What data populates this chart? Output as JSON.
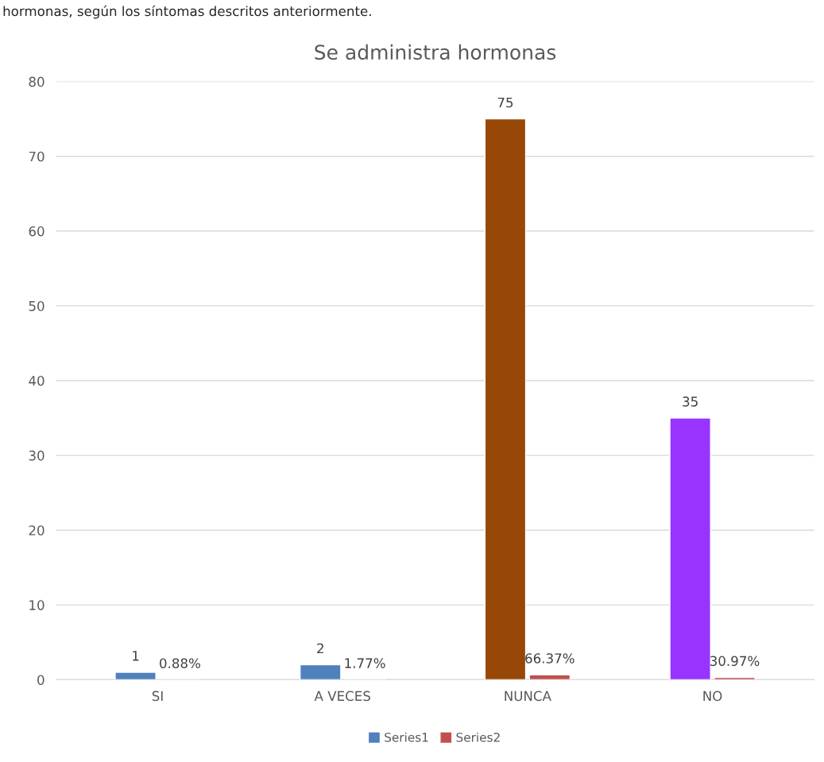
{
  "chart_data": {
    "type": "bar",
    "title": "Se administra hormonas",
    "annotations": [
      "hormonas, según los síntomas descritos anteriormente."
    ],
    "categories": [
      "SI",
      "A VECES",
      "NUNCA",
      "NO"
    ],
    "series": [
      {
        "name": "Series1",
        "color": "#4f81bd",
        "colors": [
          "#4f81bd",
          "#4f81bd",
          "#974706",
          "#9933ff"
        ],
        "values": [
          1,
          2,
          75,
          35
        ],
        "value_labels": [
          "1",
          "2",
          "75",
          "35"
        ]
      },
      {
        "name": "Series2",
        "color": "#c0504d",
        "values": [
          0.0088,
          0.0177,
          0.6637,
          0.3097
        ],
        "value_labels": [
          "0.88%",
          "1.77%",
          "66.37%",
          "30.97%"
        ]
      }
    ],
    "ylim": [
      0,
      80
    ],
    "yticks": [
      0,
      10,
      20,
      30,
      40,
      50,
      60,
      70,
      80
    ],
    "grid": "y",
    "legend": "bottom"
  }
}
